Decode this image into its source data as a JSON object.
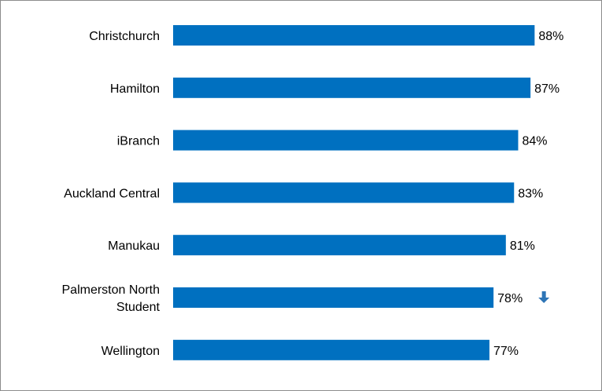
{
  "chart_data": {
    "type": "bar",
    "orientation": "horizontal",
    "categories": [
      "Christchurch",
      "Hamilton",
      "iBranch",
      "Auckland Central",
      "Manukau",
      "Palmerston North Student",
      "Wellington"
    ],
    "values": [
      88,
      87,
      84,
      83,
      81,
      78,
      77
    ],
    "data_labels": [
      "88%",
      "87%",
      "84%",
      "83%",
      "81%",
      "78%",
      "77%"
    ],
    "unit": "%",
    "xlim": [
      0,
      100
    ],
    "grid": false,
    "legend": "none",
    "annotations": [
      {
        "category": "Palmerston North Student",
        "icon": "down-arrow-icon",
        "meaning": "decrease"
      }
    ],
    "colors": {
      "bar": "#0070C0",
      "arrow": "#2E75B6"
    }
  }
}
